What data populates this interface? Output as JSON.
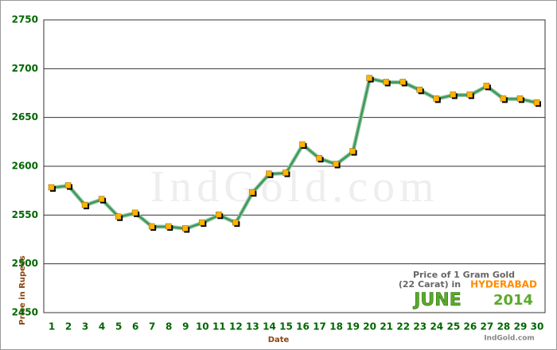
{
  "chart_data": {
    "type": "line",
    "x_label": "Date",
    "y_label": "Price in Rupees",
    "watermark": "IndGold.com",
    "annotations": {
      "line1": "Price of 1 Gram Gold",
      "line2a": "(22 Carat) in",
      "city": "HYDERABAD",
      "month": "JUNE",
      "year": "2014",
      "site": "IndGold.com"
    },
    "categories": [
      "1",
      "2",
      "3",
      "4",
      "5",
      "6",
      "7",
      "8",
      "9",
      "10",
      "11",
      "12",
      "13",
      "14",
      "15",
      "16",
      "17",
      "18",
      "19",
      "20",
      "21",
      "22",
      "23",
      "24",
      "25",
      "26",
      "27",
      "28",
      "29",
      "30"
    ],
    "values": [
      2578,
      2580,
      2560,
      2566,
      2548,
      2552,
      2538,
      2538,
      2536,
      2542,
      2550,
      2542,
      2573,
      2592,
      2593,
      2622,
      2608,
      2602,
      2615,
      2690,
      2686,
      2686,
      2678,
      2669,
      2673,
      2673,
      2682,
      2669,
      2669,
      2665
    ],
    "color": "#3a9a5a",
    "marker_color": "#ffb400",
    "ylim": [
      2450,
      2750
    ],
    "yticks": [
      2450,
      2500,
      2550,
      2600,
      2650,
      2700,
      2750
    ],
    "grid": true
  }
}
